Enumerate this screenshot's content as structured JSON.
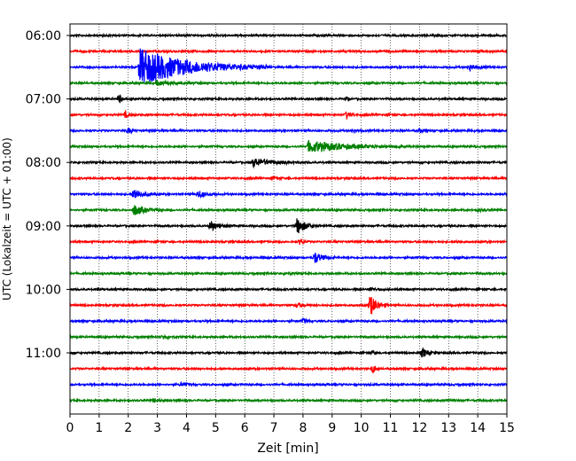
{
  "chart_data": {
    "type": "line",
    "title": "",
    "xlabel": "Zeit  [min]",
    "ylabel": "UTC (Lokalzeit = UTC + 01:00)",
    "xlim": [
      0,
      15
    ],
    "x_ticks": [
      0,
      1,
      2,
      3,
      4,
      5,
      6,
      7,
      8,
      9,
      10,
      11,
      12,
      13,
      14,
      15
    ],
    "y_ticks": [
      "06:00",
      "07:00",
      "08:00",
      "09:00",
      "10:00",
      "11:00"
    ],
    "grid": "vertical-dotted",
    "trace_minutes_each": 15,
    "trace_colors": [
      "#000000",
      "#ff0000",
      "#0000ff",
      "#008000"
    ],
    "traces": [
      {
        "start": "06:00",
        "color": "#000000",
        "events": []
      },
      {
        "start": "06:15",
        "color": "#ff0000",
        "events": [
          {
            "t": 14.0,
            "amp": 0.25,
            "dur": 0.5
          }
        ]
      },
      {
        "start": "06:30",
        "color": "#0000ff",
        "events": [
          {
            "t": 2.4,
            "amp": 3.2,
            "dur": 4.5
          },
          {
            "t": 13.7,
            "amp": 0.5,
            "dur": 0.7
          }
        ]
      },
      {
        "start": "06:45",
        "color": "#008000",
        "events": [
          {
            "t": 3.0,
            "amp": 0.4,
            "dur": 1.5
          }
        ]
      },
      {
        "start": "07:00",
        "color": "#000000",
        "events": [
          {
            "t": 1.7,
            "amp": 1.3,
            "dur": 0.12
          },
          {
            "t": 9.5,
            "amp": 0.4,
            "dur": 0.15
          }
        ]
      },
      {
        "start": "07:15",
        "color": "#ff0000",
        "events": [
          {
            "t": 1.9,
            "amp": 0.5,
            "dur": 0.3
          },
          {
            "t": 9.5,
            "amp": 0.6,
            "dur": 0.4
          }
        ]
      },
      {
        "start": "07:30",
        "color": "#0000ff",
        "events": [
          {
            "t": 2.0,
            "amp": 0.5,
            "dur": 0.3
          },
          {
            "t": 9.7,
            "amp": 0.3,
            "dur": 0.4
          },
          {
            "t": 12.0,
            "amp": 0.3,
            "dur": 0.5
          }
        ]
      },
      {
        "start": "07:45",
        "color": "#008000",
        "events": [
          {
            "t": 8.2,
            "amp": 1.0,
            "dur": 3.5
          }
        ]
      },
      {
        "start": "08:00",
        "color": "#000000",
        "events": [
          {
            "t": 6.3,
            "amp": 0.7,
            "dur": 1.8
          }
        ]
      },
      {
        "start": "08:15",
        "color": "#ff0000",
        "events": [
          {
            "t": 7.0,
            "amp": 0.3,
            "dur": 0.4
          }
        ]
      },
      {
        "start": "08:30",
        "color": "#0000ff",
        "events": [
          {
            "t": 2.2,
            "amp": 1.0,
            "dur": 0.8
          },
          {
            "t": 4.4,
            "amp": 0.6,
            "dur": 0.7
          }
        ]
      },
      {
        "start": "08:45",
        "color": "#008000",
        "events": [
          {
            "t": 2.2,
            "amp": 0.9,
            "dur": 1.0
          },
          {
            "t": 14.0,
            "amp": 0.2,
            "dur": 0.6
          }
        ]
      },
      {
        "start": "09:00",
        "color": "#000000",
        "events": [
          {
            "t": 4.8,
            "amp": 0.8,
            "dur": 0.9
          },
          {
            "t": 7.8,
            "amp": 1.4,
            "dur": 0.8
          }
        ]
      },
      {
        "start": "09:15",
        "color": "#ff0000",
        "events": [
          {
            "t": 7.9,
            "amp": 0.5,
            "dur": 0.3
          },
          {
            "t": 13.3,
            "amp": 0.2,
            "dur": 0.3
          }
        ]
      },
      {
        "start": "09:30",
        "color": "#0000ff",
        "events": [
          {
            "t": 8.4,
            "amp": 1.0,
            "dur": 0.7
          }
        ]
      },
      {
        "start": "09:45",
        "color": "#008000",
        "events": [
          {
            "t": 7.4,
            "amp": 0.2,
            "dur": 0.5
          }
        ]
      },
      {
        "start": "10:00",
        "color": "#000000",
        "events": [
          {
            "t": 10.3,
            "amp": 0.3,
            "dur": 0.5
          }
        ]
      },
      {
        "start": "10:15",
        "color": "#ff0000",
        "events": [
          {
            "t": 7.8,
            "amp": 0.4,
            "dur": 0.5
          },
          {
            "t": 10.3,
            "amp": 1.8,
            "dur": 0.7
          }
        ]
      },
      {
        "start": "10:30",
        "color": "#0000ff",
        "events": [
          {
            "t": 8.0,
            "amp": 0.4,
            "dur": 0.4
          }
        ]
      },
      {
        "start": "10:45",
        "color": "#008000",
        "events": [
          {
            "t": 3.2,
            "amp": 0.3,
            "dur": 0.5
          }
        ]
      },
      {
        "start": "11:00",
        "color": "#000000",
        "events": [
          {
            "t": 10.4,
            "amp": 0.3,
            "dur": 0.3
          },
          {
            "t": 12.1,
            "amp": 0.8,
            "dur": 0.5
          }
        ]
      },
      {
        "start": "11:15",
        "color": "#ff0000",
        "events": [
          {
            "t": 10.4,
            "amp": 0.8,
            "dur": 0.3
          }
        ]
      },
      {
        "start": "11:30",
        "color": "#0000ff",
        "events": [
          {
            "t": 3.8,
            "amp": 0.3,
            "dur": 0.5
          }
        ]
      },
      {
        "start": "11:45",
        "color": "#008000",
        "events": [
          {
            "t": 2.9,
            "amp": 0.25,
            "dur": 0.6
          },
          {
            "t": 13.0,
            "amp": 0.2,
            "dur": 0.6
          }
        ]
      }
    ]
  }
}
